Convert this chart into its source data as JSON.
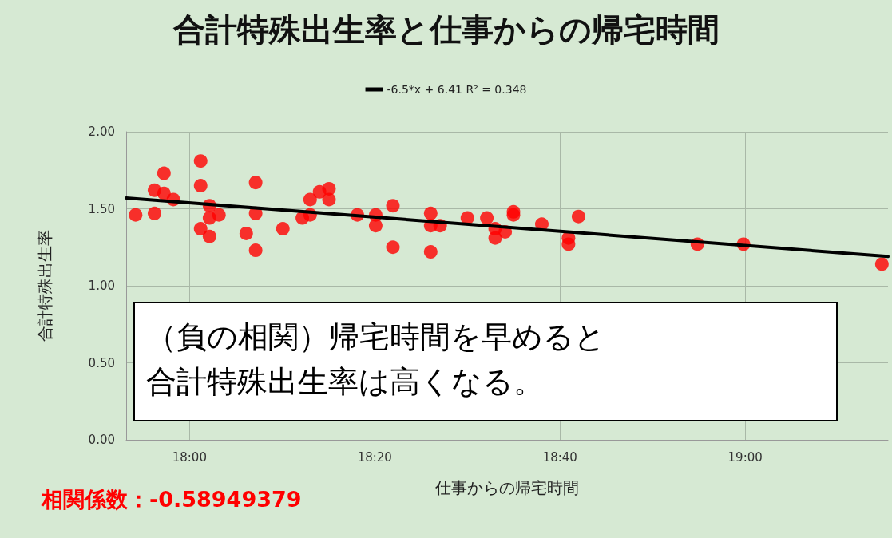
{
  "chart_data": {
    "type": "scatter",
    "title": "合計特殊出生率と仕事からの帰宅時間",
    "xlabel": "仕事からの帰宅時間",
    "ylabel": "合計特殊出生率",
    "annotations": [
      "（負の相関）帰宅時間を早めると合計特殊出生率は高くなる。",
      "相関係数：-0.58949379"
    ],
    "xlim": [
      17.886,
      19.257
    ],
    "xticks": [
      {
        "value": 18,
        "label": "18:00"
      },
      {
        "value": 18.3333,
        "label": "18:20"
      },
      {
        "value": 18.6667,
        "label": "18:40"
      },
      {
        "value": 19,
        "label": "19:00"
      }
    ],
    "ylim": [
      0,
      2
    ],
    "yticks": [
      {
        "value": 0,
        "label": "0.00"
      },
      {
        "value": 0.5,
        "label": "0.50"
      },
      {
        "value": 1,
        "label": "1.00"
      },
      {
        "value": 1.5,
        "label": "1.50"
      },
      {
        "value": 2,
        "label": "2.00"
      }
    ],
    "grid": true,
    "legend": "top",
    "marker": "circle",
    "series": [
      {
        "color": "#ff0000",
        "x": [
          17.903,
          17.937,
          17.937,
          17.954,
          17.954,
          17.971,
          18.02,
          18.02,
          18.02,
          18.036,
          18.036,
          18.036,
          18.053,
          18.102,
          18.119,
          18.119,
          18.119,
          18.168,
          18.203,
          18.217,
          18.217,
          18.234,
          18.251,
          18.251,
          18.302,
          18.335,
          18.335,
          18.366,
          18.366,
          18.434,
          18.434,
          18.434,
          18.451,
          18.5,
          18.535,
          18.55,
          18.55,
          18.568,
          18.583,
          18.583,
          18.634,
          18.682,
          18.682,
          18.7,
          18.914,
          18.997,
          19.246
        ],
        "values": [
          1.46,
          1.47,
          1.62,
          1.73,
          1.6,
          1.56,
          1.81,
          1.65,
          1.37,
          1.52,
          1.44,
          1.32,
          1.46,
          1.34,
          1.67,
          1.47,
          1.23,
          1.37,
          1.44,
          1.46,
          1.56,
          1.61,
          1.63,
          1.56,
          1.46,
          1.46,
          1.39,
          1.52,
          1.25,
          1.47,
          1.39,
          1.22,
          1.39,
          1.44,
          1.44,
          1.37,
          1.31,
          1.35,
          1.48,
          1.46,
          1.4,
          1.31,
          1.27,
          1.45,
          1.27,
          1.27,
          1.14
        ]
      },
      {
        "type": "line",
        "name": "-6.5*x + 6.41 R² = 0.348",
        "color": "#000000",
        "line_style": "solid",
        "marker": "none",
        "x": [
          17.886,
          19.257
        ],
        "values": [
          1.57,
          1.19
        ]
      }
    ]
  }
}
